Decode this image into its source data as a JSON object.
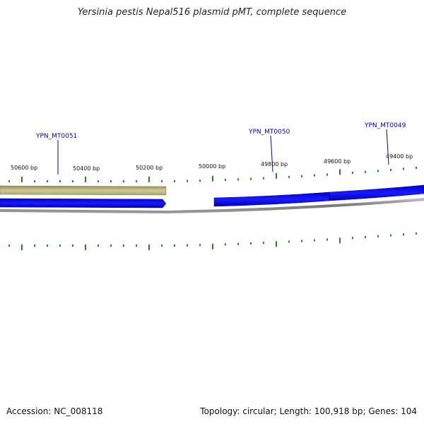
{
  "title": "Yersinia pestis Nepal516 plasmid pMT, complete sequence",
  "footer": {
    "accession": "Accession: NC_008118",
    "summary": "Topology: circular; Length: 100,918 bp; Genes: 104"
  },
  "scale_labels": [
    "50600 bp",
    "50400 bp",
    "50200 bp",
    "50000 bp",
    "49800 bp",
    "49600 bp",
    "49400 bp"
  ],
  "genes": [
    {
      "name": "YPN_MT0051",
      "strand": "reverse",
      "color": "#0000ff"
    },
    {
      "name": "YPN_MT0050",
      "strand": "reverse",
      "color": "#0000ff"
    },
    {
      "name": "YPN_MT0049",
      "strand": "reverse",
      "color": "#0000ff"
    }
  ],
  "features": [
    {
      "type": "other",
      "color": "#b8b47a"
    }
  ],
  "colors": {
    "backbone": "#888888",
    "tick": "#1a8a1a",
    "gene": "#0000ff",
    "gene_label": "#0000b4",
    "other_feature": "#b8b47a"
  }
}
